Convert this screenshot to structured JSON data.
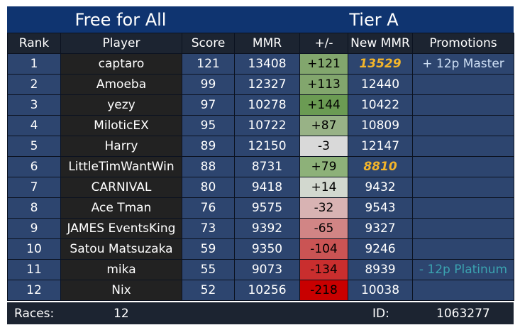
{
  "title_left": "Free for All",
  "title_right": "Tier A",
  "headers": {
    "rank": "Rank",
    "player": "Player",
    "score": "Score",
    "mmr": "MMR",
    "delta": "+/-",
    "new_mmr": "New MMR",
    "promotions": "Promotions"
  },
  "rows": [
    {
      "rank": "1",
      "player": "captaro",
      "score": "121",
      "mmr": "13408",
      "delta": "+121",
      "new_mmr": "13529",
      "promotion": "+ 12p Master"
    },
    {
      "rank": "2",
      "player": "Amoeba",
      "score": "99",
      "mmr": "12327",
      "delta": "+113",
      "new_mmr": "12440",
      "promotion": ""
    },
    {
      "rank": "3",
      "player": "yezy",
      "score": "97",
      "mmr": "10278",
      "delta": "+144",
      "new_mmr": "10422",
      "promotion": ""
    },
    {
      "rank": "4",
      "player": "MiloticEX",
      "score": "95",
      "mmr": "10722",
      "delta": "+87",
      "new_mmr": "10809",
      "promotion": ""
    },
    {
      "rank": "5",
      "player": "Harry",
      "score": "89",
      "mmr": "12150",
      "delta": "-3",
      "new_mmr": "12147",
      "promotion": ""
    },
    {
      "rank": "6",
      "player": "LittleTimWantWin",
      "score": "88",
      "mmr": "8731",
      "delta": "+79",
      "new_mmr": "8810",
      "promotion": ""
    },
    {
      "rank": "7",
      "player": "CARNIVAL",
      "score": "80",
      "mmr": "9418",
      "delta": "+14",
      "new_mmr": "9432",
      "promotion": ""
    },
    {
      "rank": "8",
      "player": "Ace Tman",
      "score": "76",
      "mmr": "9575",
      "delta": "-32",
      "new_mmr": "9543",
      "promotion": ""
    },
    {
      "rank": "9",
      "player": "JAMES EventsKing",
      "score": "73",
      "mmr": "9392",
      "delta": "-65",
      "new_mmr": "9327",
      "promotion": ""
    },
    {
      "rank": "10",
      "player": "Satou Matsuzaka",
      "score": "59",
      "mmr": "9350",
      "delta": "-104",
      "new_mmr": "9246",
      "promotion": ""
    },
    {
      "rank": "11",
      "player": "mika",
      "score": "55",
      "mmr": "9073",
      "delta": "-134",
      "new_mmr": "8939",
      "promotion": "- 12p Platinum"
    },
    {
      "rank": "12",
      "player": "Nix",
      "score": "52",
      "mmr": "10256",
      "delta": "-218",
      "new_mmr": "10038",
      "promotion": ""
    }
  ],
  "delta_colors": [
    "#82a66d",
    "#82a66d",
    "#6b9b53",
    "#98b286",
    "#d9d9d9",
    "#8db179",
    "#d2d8cf",
    "#d8b3b3",
    "#d18585",
    "#ca5454",
    "#c92e2e",
    "#c80000"
  ],
  "highlight_new_mmr_rows": [
    0,
    5
  ],
  "highlight_color": "#f3b52a",
  "footer": {
    "races_label": "Races:",
    "races_value": "12",
    "id_label": "ID:",
    "id_value": "1063277"
  }
}
